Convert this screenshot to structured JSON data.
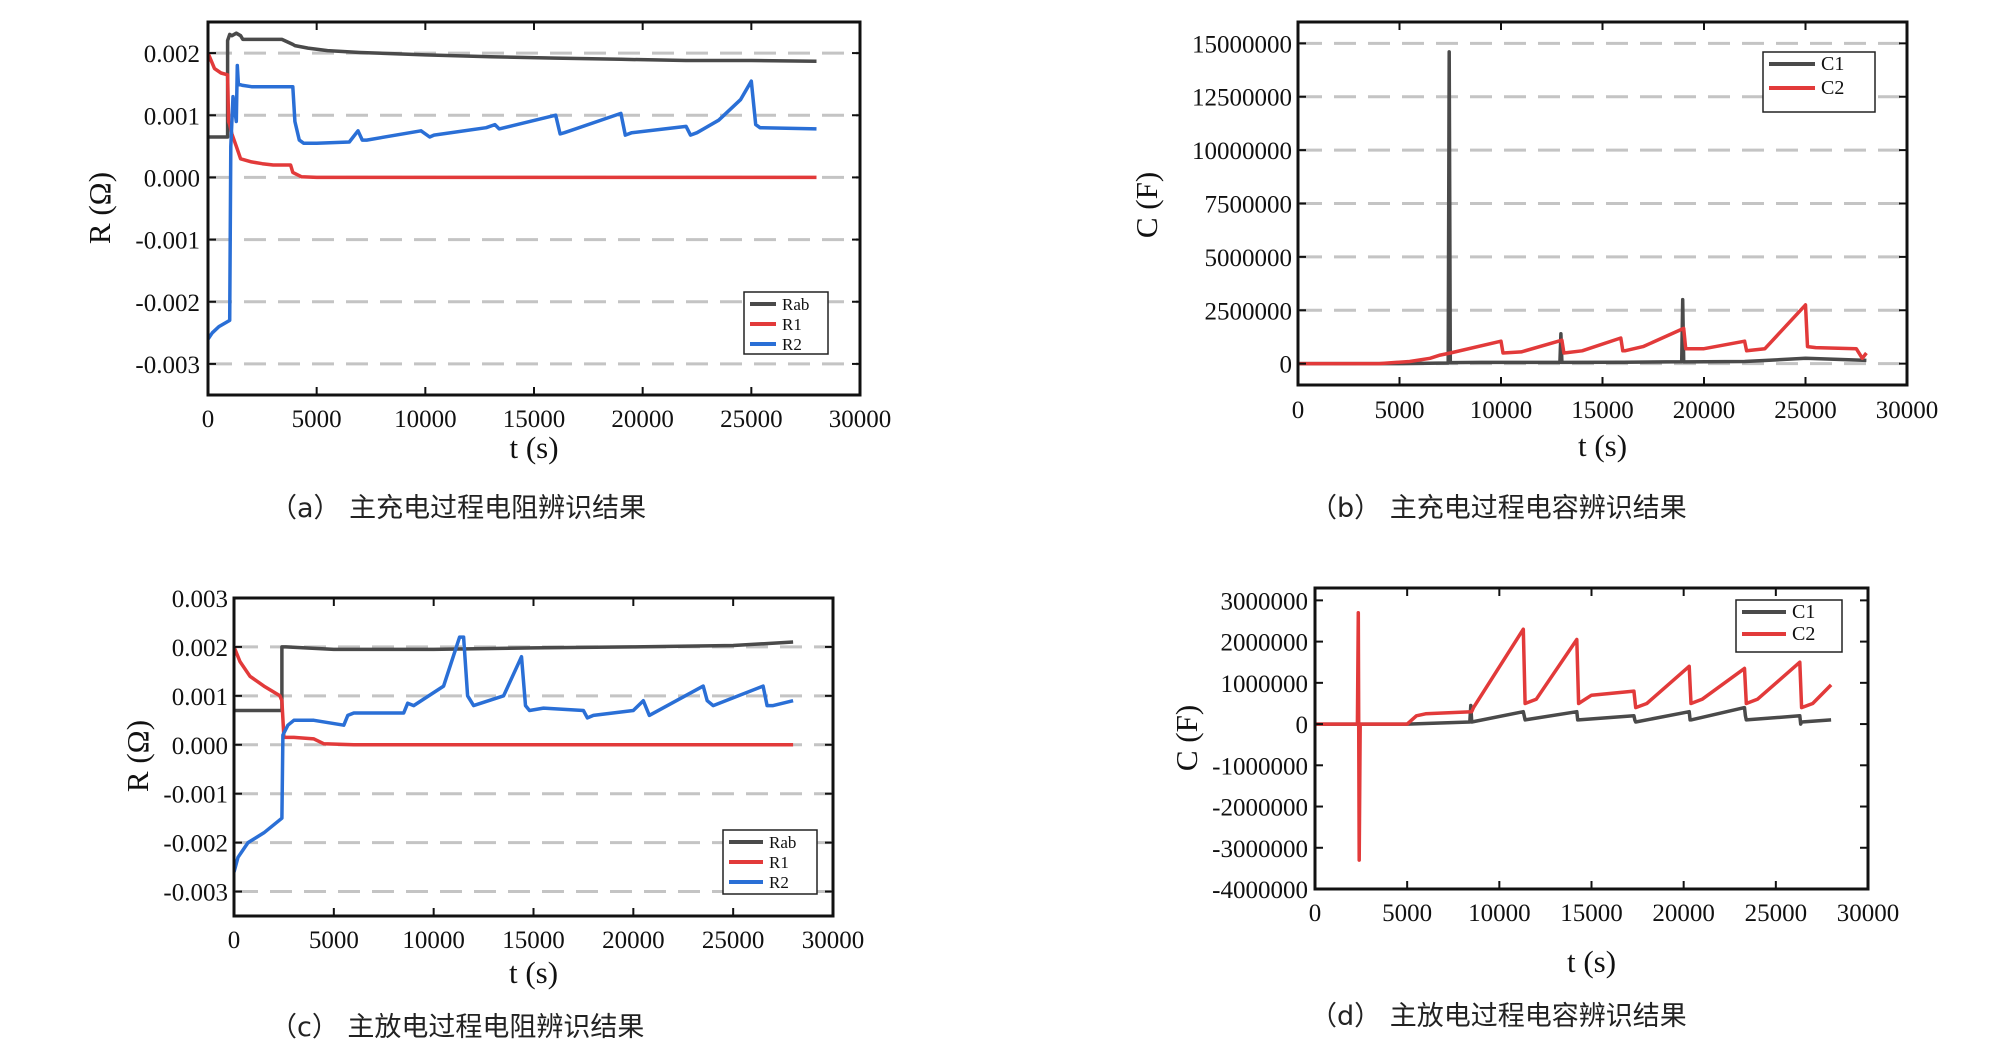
{
  "chart_data": [
    {
      "type": "line",
      "id": "a",
      "caption": "（a）    主充电过程电阻辨识结果",
      "xlabel": "t (s)",
      "ylabel": "R (Ω)",
      "xlim": [
        0,
        30000
      ],
      "ylim": [
        -0.0035,
        0.0025
      ],
      "xticks": [
        0,
        5000,
        10000,
        15000,
        20000,
        25000,
        30000
      ],
      "xtick_labels": [
        "0",
        "5000",
        "10000",
        "15000",
        "20000",
        "25000",
        "30000"
      ],
      "yticks": [
        0.002,
        0.001,
        0.0,
        -0.001,
        -0.002,
        -0.003
      ],
      "ytick_labels": [
        "0.002",
        "0.001",
        "0.000",
        "-0.001",
        "-0.002",
        "-0.003"
      ],
      "grid": "horizontal-dashed",
      "legend_position": "bottom-right",
      "series": [
        {
          "name": "Rab",
          "color": "#4a4a4a",
          "x": [
            0,
            900,
            900,
            1000,
            1100,
            1300,
            1500,
            1600,
            2000,
            2600,
            3400,
            3900,
            4000,
            4600,
            5500,
            7000,
            10000,
            13000,
            16000,
            19000,
            22000,
            25000,
            28000
          ],
          "y": [
            0.00065,
            0.00065,
            0.0022,
            0.0023,
            0.00228,
            0.00232,
            0.00228,
            0.00222,
            0.00222,
            0.00222,
            0.00222,
            0.00214,
            0.00212,
            0.00208,
            0.00204,
            0.00201,
            0.00197,
            0.00194,
            0.00192,
            0.0019,
            0.00188,
            0.00188,
            0.00187
          ]
        },
        {
          "name": "R1",
          "color": "#e23a3a",
          "x": [
            0,
            300,
            600,
            900,
            950,
            1000,
            1100,
            1300,
            1500,
            2000,
            2500,
            3000,
            3800,
            3900,
            4300,
            5000,
            10000,
            16000,
            22000,
            28000
          ],
          "y": [
            0.002,
            0.00175,
            0.00168,
            0.00165,
            0.0009,
            0.00085,
            0.0007,
            0.0005,
            0.0003,
            0.00025,
            0.00022,
            0.0002,
            0.0002,
            8e-05,
            1e-05,
            0.0,
            0.0,
            0.0,
            0.0,
            0.0
          ]
        },
        {
          "name": "R2",
          "color": "#2a6fd6",
          "x": [
            0,
            200,
            500,
            1000,
            1050,
            1150,
            1300,
            1350,
            1400,
            1600,
            2000,
            3000,
            3900,
            4000,
            4200,
            4400,
            5000,
            6500,
            6900,
            7100,
            7300,
            9800,
            10200,
            10400,
            12800,
            13200,
            13400,
            16000,
            16200,
            16400,
            19000,
            19200,
            19500,
            22000,
            22200,
            22500,
            23500,
            24500,
            25000,
            25200,
            25400,
            28000
          ],
          "y": [
            -0.0026,
            -0.0025,
            -0.0024,
            -0.0023,
            0.0005,
            0.0013,
            0.0009,
            0.0018,
            0.0015,
            0.00148,
            0.00146,
            0.00146,
            0.00146,
            0.0009,
            0.0006,
            0.00055,
            0.00055,
            0.00057,
            0.00075,
            0.0006,
            0.0006,
            0.00075,
            0.00065,
            0.00068,
            0.0008,
            0.00085,
            0.00078,
            0.001,
            0.0007,
            0.00072,
            0.00103,
            0.00068,
            0.00072,
            0.00082,
            0.00068,
            0.00072,
            0.00092,
            0.00125,
            0.00155,
            0.00085,
            0.0008,
            0.00078
          ]
        }
      ]
    },
    {
      "type": "line",
      "id": "b",
      "caption": "（b）    主充电过程电容辨识结果",
      "xlabel": "t (s)",
      "ylabel": "C (F)",
      "xlim": [
        0,
        30000
      ],
      "ylim": [
        -1000000,
        16000000
      ],
      "xticks": [
        0,
        5000,
        10000,
        15000,
        20000,
        25000,
        30000
      ],
      "xtick_labels": [
        "0",
        "5000",
        "10000",
        "15000",
        "20000",
        "25000",
        "30000"
      ],
      "yticks": [
        15000000,
        12500000,
        10000000,
        7500000,
        5000000,
        2500000,
        0
      ],
      "ytick_labels": [
        "15000000",
        "12500000",
        "10000000",
        "7500000",
        "5000000",
        "2500000",
        "0"
      ],
      "grid": "horizontal-dashed",
      "legend_position": "top-right",
      "series": [
        {
          "name": "C1",
          "color": "#4a4a4a",
          "x": [
            0,
            5000,
            7400,
            7450,
            7500,
            7600,
            9000,
            12900,
            12950,
            13000,
            13100,
            16000,
            18900,
            18950,
            19000,
            19100,
            22000,
            25000,
            28000
          ],
          "y": [
            0,
            0,
            30000,
            14600000,
            50000,
            50000,
            60000,
            60000,
            1400000,
            60000,
            60000,
            70000,
            90000,
            3000000,
            80000,
            80000,
            100000,
            250000,
            150000
          ]
        },
        {
          "name": "C2",
          "color": "#e23a3a",
          "x": [
            0,
            4000,
            5500,
            6500,
            7000,
            7500,
            10000,
            10100,
            11000,
            13000,
            13100,
            14000,
            15900,
            16000,
            16100,
            17000,
            19000,
            19100,
            20000,
            22000,
            22100,
            23000,
            25000,
            25100,
            25500,
            27500,
            27800,
            28000
          ],
          "y": [
            0,
            0,
            100000,
            250000,
            400000,
            500000,
            1050000,
            500000,
            550000,
            1100000,
            500000,
            600000,
            1200000,
            600000,
            600000,
            800000,
            1650000,
            700000,
            700000,
            1050000,
            600000,
            700000,
            2750000,
            800000,
            750000,
            700000,
            250000,
            500000
          ]
        }
      ]
    },
    {
      "type": "line",
      "id": "c",
      "caption": "（c）    主放电过程电阻辨识结果",
      "xlabel": "t (s)",
      "ylabel": "R (Ω)",
      "xlim": [
        0,
        30000
      ],
      "ylim": [
        -0.0035,
        0.003
      ],
      "xticks": [
        0,
        5000,
        10000,
        15000,
        20000,
        25000,
        30000
      ],
      "xtick_labels": [
        "0",
        "5000",
        "10000",
        "15000",
        "20000",
        "25000",
        "30000"
      ],
      "yticks": [
        0.003,
        0.002,
        0.001,
        0.0,
        -0.001,
        -0.002,
        -0.003
      ],
      "ytick_labels": [
        "0.003",
        "0.002",
        "0.001",
        "0.000",
        "-0.001",
        "-0.002",
        "-0.003"
      ],
      "grid": "horizontal-dashed",
      "legend_position": "bottom-right",
      "series": [
        {
          "name": "Rab",
          "color": "#4a4a4a",
          "x": [
            0,
            2400,
            2400,
            2600,
            5000,
            10000,
            15000,
            20000,
            25000,
            28000
          ],
          "y": [
            0.0007,
            0.0007,
            0.002,
            0.002,
            0.00195,
            0.00195,
            0.00198,
            0.002,
            0.00203,
            0.0021
          ]
        },
        {
          "name": "R1",
          "color": "#e23a3a",
          "x": [
            0,
            300,
            800,
            1500,
            2300,
            2400,
            2500,
            3000,
            4000,
            4500,
            6000,
            15000,
            28000
          ],
          "y": [
            0.002,
            0.0017,
            0.0014,
            0.0012,
            0.001,
            0.0009,
            0.00015,
            0.00015,
            0.00012,
            2e-05,
            0.0,
            0.0,
            0.0
          ]
        },
        {
          "name": "R2",
          "color": "#2a6fd6",
          "x": [
            0,
            200,
            700,
            1500,
            2400,
            2450,
            2700,
            3000,
            4000,
            5500,
            5700,
            6000,
            8500,
            8700,
            9000,
            10500,
            11300,
            11500,
            11700,
            12000,
            13500,
            14400,
            14600,
            14800,
            15500,
            17500,
            17700,
            18000,
            20000,
            20500,
            20800,
            23500,
            23700,
            24000,
            26500,
            26700,
            27000,
            28000
          ],
          "y": [
            -0.0026,
            -0.0023,
            -0.002,
            -0.0018,
            -0.0015,
            0.0002,
            0.0004,
            0.0005,
            0.0005,
            0.0004,
            0.0006,
            0.00065,
            0.00065,
            0.00085,
            0.0008,
            0.0012,
            0.0022,
            0.0022,
            0.001,
            0.0008,
            0.001,
            0.0018,
            0.0008,
            0.0007,
            0.00075,
            0.0007,
            0.00055,
            0.0006,
            0.0007,
            0.0009,
            0.0006,
            0.0012,
            0.0009,
            0.0008,
            0.0012,
            0.0008,
            0.0008,
            0.0009
          ]
        }
      ]
    },
    {
      "type": "line",
      "id": "d",
      "caption": "（d）    主放电过程电容辨识结果",
      "xlabel": "t (s)",
      "ylabel": "C (F)",
      "xlim": [
        0,
        30000
      ],
      "ylim": [
        -4000000,
        3300000
      ],
      "xticks": [
        0,
        5000,
        10000,
        15000,
        20000,
        25000,
        30000
      ],
      "xtick_labels": [
        "0",
        "5000",
        "10000",
        "15000",
        "20000",
        "25000",
        "30000"
      ],
      "yticks": [
        3000000,
        2000000,
        1000000,
        0,
        -1000000,
        -2000000,
        -3000000,
        -4000000
      ],
      "ytick_labels": [
        "3000000",
        "2000000",
        "1000000",
        "0",
        "-1000000",
        "-2000000",
        "-3000000",
        "-4000000"
      ],
      "grid": "none",
      "legend_position": "top-right",
      "series": [
        {
          "name": "C1",
          "color": "#4a4a4a",
          "x": [
            0,
            2500,
            5000,
            8400,
            8450,
            8500,
            11300,
            11350,
            11400,
            14200,
            14250,
            14300,
            17300,
            17350,
            17400,
            20300,
            20350,
            20400,
            23300,
            23350,
            23400,
            26300,
            26350,
            26400,
            28000
          ],
          "y": [
            0,
            0,
            0,
            50000,
            450000,
            50000,
            300000,
            200000,
            100000,
            300000,
            100000,
            100000,
            200000,
            100000,
            50000,
            300000,
            100000,
            100000,
            400000,
            200000,
            100000,
            200000,
            0,
            50000,
            100000
          ]
        },
        {
          "name": "C2",
          "color": "#e23a3a",
          "x": [
            0,
            2300,
            2350,
            2400,
            2450,
            2500,
            5000,
            5500,
            6000,
            8500,
            8600,
            11300,
            11400,
            12000,
            14200,
            14300,
            15000,
            17300,
            17400,
            18000,
            20300,
            20400,
            21000,
            23300,
            23400,
            24000,
            26300,
            26400,
            27000,
            28000
          ],
          "y": [
            0,
            0,
            2700000,
            -3300000,
            0,
            0,
            0,
            200000,
            250000,
            300000,
            400000,
            2300000,
            500000,
            600000,
            2050000,
            500000,
            700000,
            800000,
            400000,
            500000,
            1400000,
            500000,
            600000,
            1350000,
            500000,
            600000,
            1500000,
            400000,
            500000,
            950000
          ]
        }
      ]
    }
  ]
}
